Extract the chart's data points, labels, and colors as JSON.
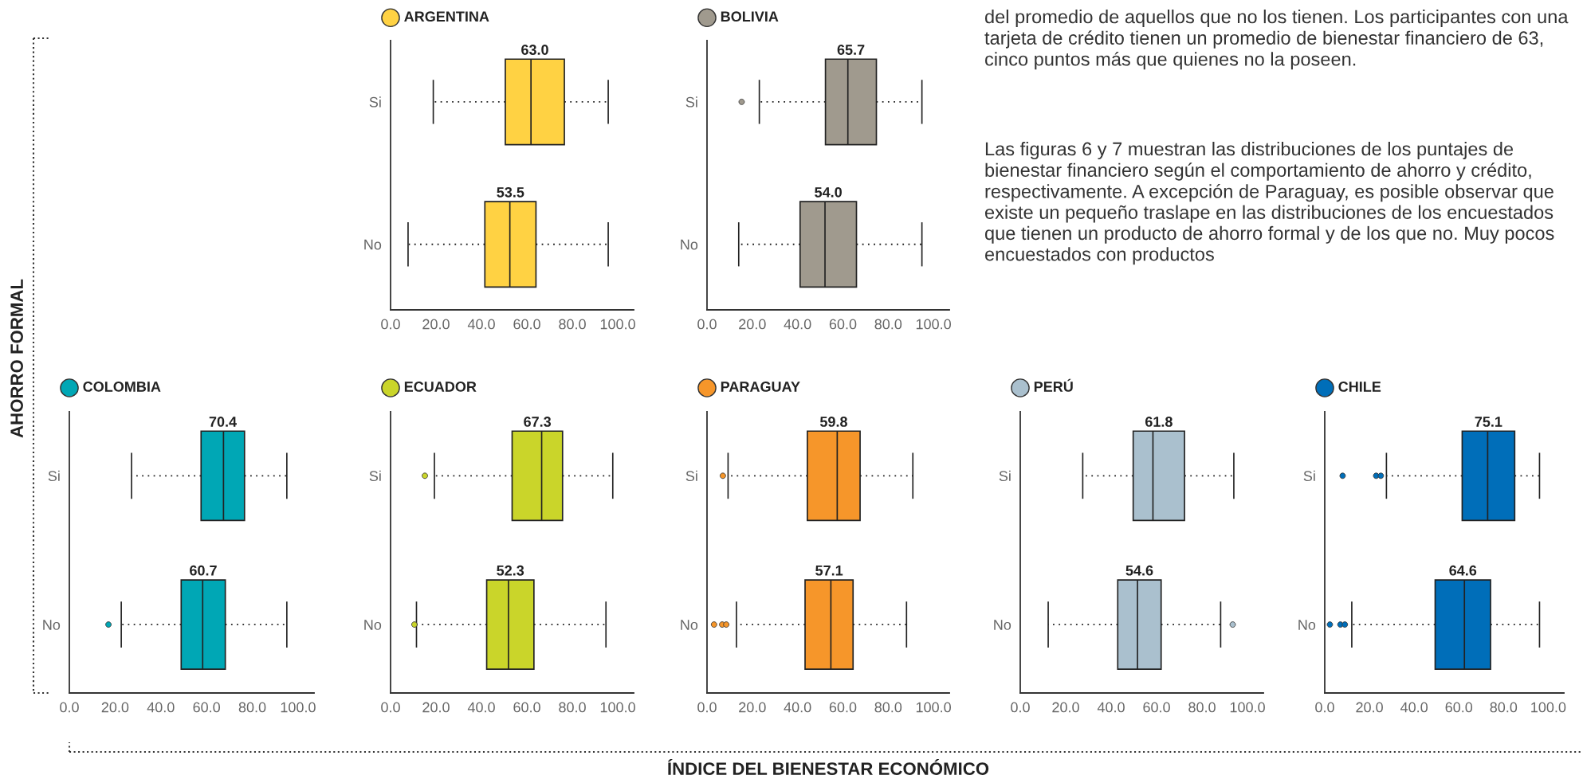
{
  "chart_data": [
    {
      "type": "box",
      "title": "ARGENTINA",
      "orientation": "horizontal",
      "categories": [
        "Si",
        "No"
      ],
      "xlim": [
        0,
        107
      ],
      "xticks": [
        {
          "value": 0,
          "label": "0.0"
        },
        {
          "value": 20,
          "label": "20.0"
        },
        {
          "value": 40,
          "label": "40.0"
        },
        {
          "value": 60,
          "label": "60.0"
        },
        {
          "value": 80,
          "label": "80.0"
        },
        {
          "value": 100,
          "label": "100.0"
        }
      ],
      "series": [
        {
          "color": "#ffd243",
          "value_labels": [
            "63.0",
            "53.5"
          ],
          "boxes": [
            {
              "low": 18.8,
              "q1": 50.5,
              "median": 61.8,
              "q3": 76.5,
              "high": 95.8
            },
            {
              "low": 7.7,
              "q1": 41.5,
              "median": 52.5,
              "q3": 64,
              "high": 95.8
            }
          ]
        }
      ]
    },
    {
      "type": "box",
      "title": "BOLIVIA",
      "orientation": "horizontal",
      "categories": [
        "Si",
        "No"
      ],
      "xlim": [
        0,
        107
      ],
      "xticks": [
        {
          "value": 0,
          "label": "0.0"
        },
        {
          "value": 20,
          "label": "20.0"
        },
        {
          "value": 40,
          "label": "40.0"
        },
        {
          "value": 60,
          "label": "60.0"
        },
        {
          "value": 80,
          "label": "80.0"
        },
        {
          "value": 100,
          "label": "100.0"
        }
      ],
      "series": [
        {
          "color": "#a09a8e",
          "value_labels": [
            "65.7",
            "54.0"
          ],
          "boxes": [
            {
              "low": 23.1,
              "q1": 52.3,
              "median": 62.2,
              "q3": 74.8,
              "high": 94.9,
              "outliers": [
                15.3
              ]
            },
            {
              "low": 14,
              "q1": 41.1,
              "median": 52.1,
              "q3": 66,
              "high": 94.9
            }
          ]
        }
      ]
    },
    {
      "type": "other",
      "xlabel": "ÍNDICE DEL BIENESTAR ECONÓMICO",
      "ylabel": "AHORRO FORMAL",
      "annotations": [
        "del promedio de aquellos que no los tienen. Los participantes con una tarjeta de crédito tienen un promedio de bienestar financiero de 63, cinco puntos más que quienes no la poseen.",
        "Las figuras 6 y 7 muestran las distribuciones de los puntajes de bienestar financiero según el comportamiento de ahorro y crédito, respectivamente. A excepción de Paraguay, es posible observar que existe un pequeño traslape en las distribuciones de los encuestados que tienen un producto de ahorro formal y de los que no. Muy pocos encuestados con productos"
      ]
    },
    {
      "type": "box",
      "title": "COLOMBIA",
      "orientation": "horizontal",
      "categories": [
        "Si",
        "No"
      ],
      "xlim": [
        0,
        107
      ],
      "xticks": [
        {
          "value": 0,
          "label": "0.0"
        },
        {
          "value": 20,
          "label": "20.0"
        },
        {
          "value": 40,
          "label": "40.0"
        },
        {
          "value": 60,
          "label": "60.0"
        },
        {
          "value": 80,
          "label": "80.0"
        },
        {
          "value": 100,
          "label": "100.0"
        }
      ],
      "series": [
        {
          "color": "#00a7b5",
          "value_labels": [
            "70.4",
            "60.7"
          ],
          "boxes": [
            {
              "low": 27.2,
              "q1": 57.6,
              "median": 67.4,
              "q3": 76.6,
              "high": 95.1
            },
            {
              "low": 22.7,
              "q1": 48.9,
              "median": 58.3,
              "q3": 68.2,
              "high": 95.1,
              "outliers": [
                17.1
              ]
            }
          ]
        }
      ]
    },
    {
      "type": "box",
      "title": "ECUADOR",
      "orientation": "horizontal",
      "categories": [
        "Si",
        "No"
      ],
      "xlim": [
        0,
        107
      ],
      "xticks": [
        {
          "value": 0,
          "label": "0.0"
        },
        {
          "value": 20,
          "label": "20.0"
        },
        {
          "value": 40,
          "label": "40.0"
        },
        {
          "value": 60,
          "label": "60.0"
        },
        {
          "value": 80,
          "label": "80.0"
        },
        {
          "value": 100,
          "label": "100.0"
        }
      ],
      "series": [
        {
          "color": "#cad52a",
          "value_labels": [
            "67.3",
            "52.3"
          ],
          "boxes": [
            {
              "low": 19.3,
              "q1": 53.5,
              "median": 66.5,
              "q3": 75.7,
              "high": 97.8,
              "outliers": [
                15.1
              ]
            },
            {
              "low": 11.4,
              "q1": 42.3,
              "median": 51.9,
              "q3": 63.1,
              "high": 94.8,
              "outliers": [
                10.5
              ]
            }
          ]
        }
      ]
    },
    {
      "type": "box",
      "title": "PARAGUAY",
      "orientation": "horizontal",
      "categories": [
        "Si",
        "No"
      ],
      "xlim": [
        0,
        107
      ],
      "xticks": [
        {
          "value": 0,
          "label": "0.0"
        },
        {
          "value": 20,
          "label": "20.0"
        },
        {
          "value": 40,
          "label": "40.0"
        },
        {
          "value": 60,
          "label": "60.0"
        },
        {
          "value": 80,
          "label": "80.0"
        },
        {
          "value": 100,
          "label": "100.0"
        }
      ],
      "series": [
        {
          "color": "#f6962a",
          "value_labels": [
            "59.8",
            "57.1"
          ],
          "boxes": [
            {
              "low": 9.3,
              "q1": 44.3,
              "median": 57.5,
              "q3": 67.6,
              "high": 90.9,
              "outliers": [
                7
              ]
            },
            {
              "low": 13,
              "q1": 43.3,
              "median": 54.7,
              "q3": 64.5,
              "high": 88.1,
              "outliers": [
                3.1,
                6.7,
                8.5
              ]
            }
          ]
        }
      ]
    },
    {
      "type": "box",
      "title": "PERÚ",
      "orientation": "horizontal",
      "categories": [
        "Si",
        "No"
      ],
      "xlim": [
        0,
        107
      ],
      "xticks": [
        {
          "value": 0,
          "label": "0.0"
        },
        {
          "value": 20,
          "label": "20.0"
        },
        {
          "value": 40,
          "label": "40.0"
        },
        {
          "value": 60,
          "label": "60.0"
        },
        {
          "value": 80,
          "label": "80.0"
        },
        {
          "value": 100,
          "label": "100.0"
        }
      ],
      "series": [
        {
          "color": "#aac0ce",
          "value_labels": [
            "61.8",
            "54.6"
          ],
          "boxes": [
            {
              "low": 27.5,
              "q1": 49.7,
              "median": 58.4,
              "q3": 72.3,
              "high": 94
            },
            {
              "low": 12.3,
              "q1": 42.9,
              "median": 51.6,
              "q3": 62,
              "high": 88.2,
              "outliers": [
                93.5
              ]
            }
          ]
        }
      ]
    },
    {
      "type": "box",
      "title": "CHILE",
      "orientation": "horizontal",
      "categories": [
        "Si",
        "No"
      ],
      "xlim": [
        0,
        107
      ],
      "xticks": [
        {
          "value": 0,
          "label": "0.0"
        },
        {
          "value": 20,
          "label": "20.0"
        },
        {
          "value": 40,
          "label": "40.0"
        },
        {
          "value": 60,
          "label": "60.0"
        },
        {
          "value": 80,
          "label": "80.0"
        },
        {
          "value": 100,
          "label": "100.0"
        }
      ],
      "series": [
        {
          "color": "#006eb9",
          "value_labels": [
            "75.1",
            "64.6"
          ],
          "boxes": [
            {
              "low": 27.6,
              "q1": 61.5,
              "median": 72.9,
              "q3": 85,
              "high": 96.1,
              "outliers": [
                8,
                23,
                25.1
              ]
            },
            {
              "low": 12.1,
              "q1": 49.4,
              "median": 62.5,
              "q3": 74.2,
              "high": 96.1,
              "outliers": [
                2.3,
                7,
                9
              ]
            }
          ]
        }
      ]
    }
  ]
}
